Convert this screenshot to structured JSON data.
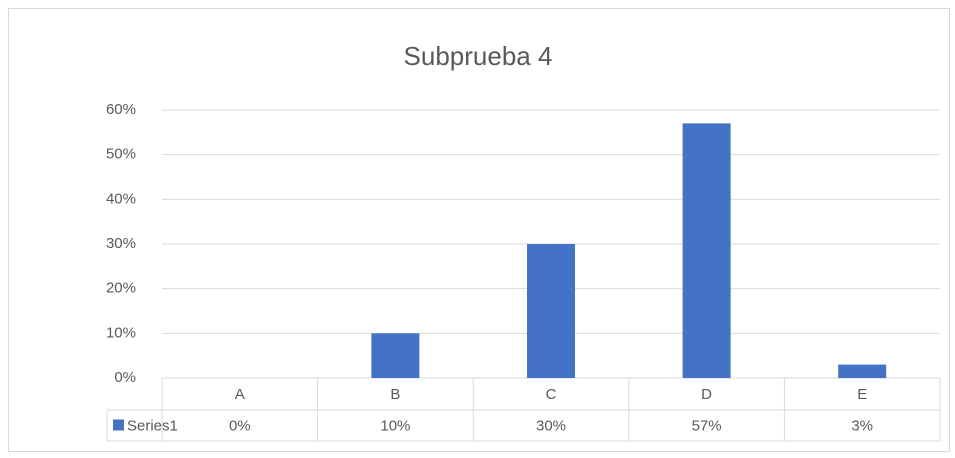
{
  "chart_data": {
    "type": "bar",
    "title": "Subprueba 4",
    "categories": [
      "A",
      "B",
      "C",
      "D",
      "E"
    ],
    "series": [
      {
        "name": "Series1",
        "color": "#4472c4",
        "values": [
          0,
          10,
          30,
          57,
          3
        ],
        "value_labels": [
          "0%",
          "10%",
          "30%",
          "57%",
          "3%"
        ]
      }
    ],
    "ylim": [
      0,
      60
    ],
    "yticks": [
      {
        "value": 0,
        "label": "0%"
      },
      {
        "value": 10,
        "label": "10%"
      },
      {
        "value": 20,
        "label": "20%"
      },
      {
        "value": 30,
        "label": "30%"
      },
      {
        "value": 40,
        "label": "40%"
      },
      {
        "value": 50,
        "label": "50%"
      },
      {
        "value": 60,
        "label": "60%"
      }
    ],
    "grid": true
  }
}
